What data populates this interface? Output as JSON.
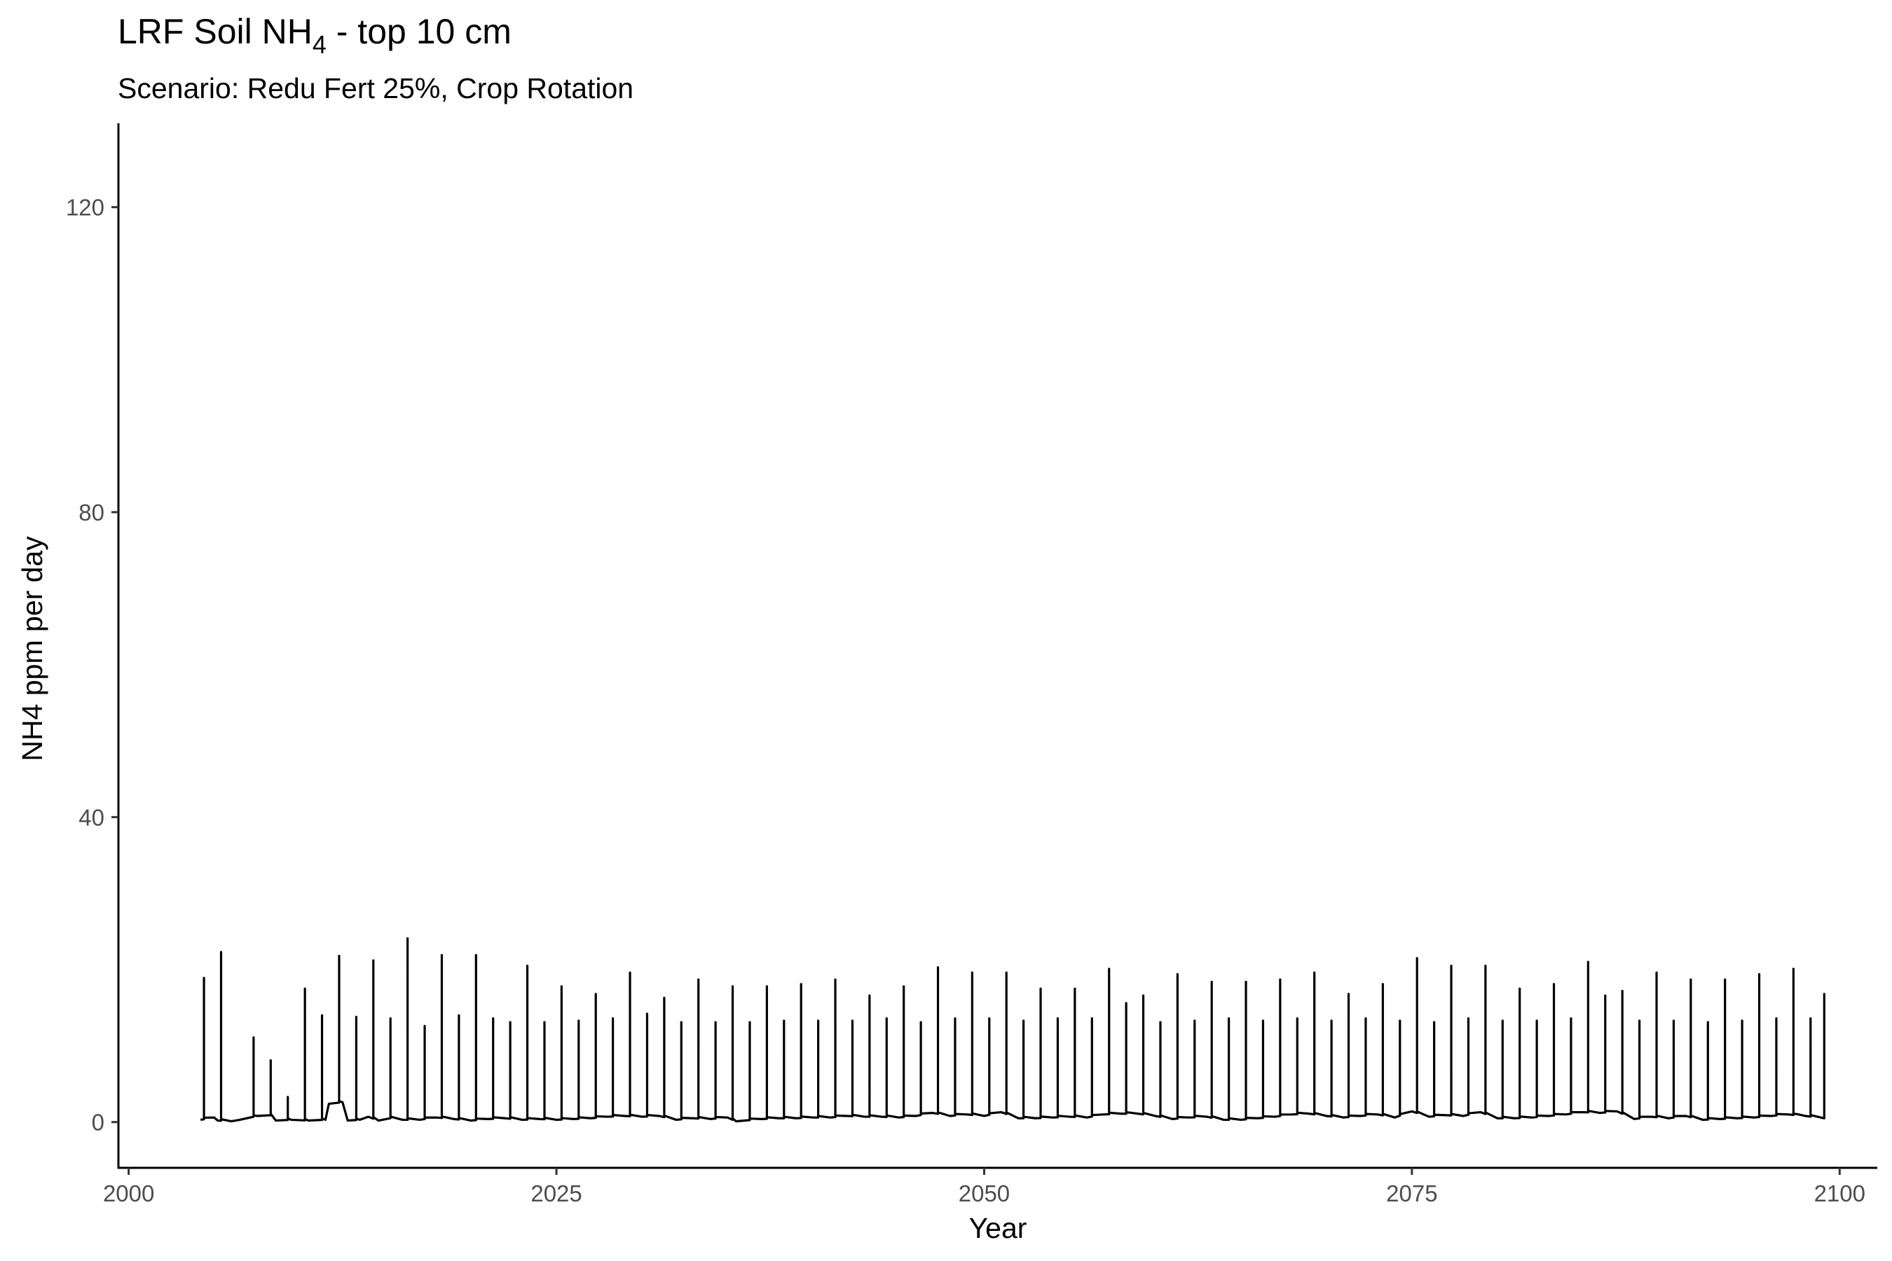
{
  "chart_data": {
    "type": "line",
    "title_main": "LRF Soil NH",
    "title_subscript": "4",
    "title_tail": " - top 10 cm",
    "subtitle": "Scenario: Redu Fert 25%, Crop Rotation",
    "xlabel": "Year",
    "ylabel": "NH4 ppm per day",
    "xlim": [
      1999.4,
      2102.2
    ],
    "ylim": [
      -6.0,
      131.0
    ],
    "x_ticks": [
      2000,
      2025,
      2050,
      2075,
      2100
    ],
    "x_tick_labels": [
      "2000",
      "2025",
      "2050",
      "2075",
      "2100"
    ],
    "y_ticks": [
      0,
      40,
      80,
      120
    ],
    "y_tick_labels": [
      "0",
      "40",
      "80",
      "120"
    ],
    "grid": false,
    "series": [
      {
        "color": "#000000",
        "baseline_start": 2004.2,
        "baseline_end": 2099.1,
        "baseline_points": [
          [
            2004.2,
            0.3
          ],
          [
            2005.0,
            0.6
          ],
          [
            2005.2,
            0.2
          ],
          [
            2006.0,
            0.1
          ],
          [
            2006.5,
            0.3
          ],
          [
            2007.5,
            0.8
          ],
          [
            2008.3,
            0.9
          ],
          [
            2008.6,
            0.2
          ],
          [
            2009.5,
            0.3
          ],
          [
            2010.5,
            0.2
          ],
          [
            2011.5,
            0.3
          ],
          [
            2011.7,
            2.4
          ],
          [
            2012.5,
            2.6
          ],
          [
            2012.8,
            0.2
          ],
          [
            2013.5,
            0.3
          ],
          [
            2014.0,
            0.7
          ],
          [
            2014.6,
            0.2
          ],
          [
            2015.5,
            0.6
          ],
          [
            2016.0,
            0.3
          ],
          [
            2017.0,
            0.3
          ],
          [
            2018.0,
            0.6
          ],
          [
            2019.0,
            0.4
          ],
          [
            2020.0,
            0.2
          ],
          [
            2021.0,
            0.4
          ],
          [
            2022.0,
            0.5
          ],
          [
            2023.0,
            0.3
          ],
          [
            2024.0,
            0.4
          ],
          [
            2025.0,
            0.3
          ],
          [
            2026.0,
            0.4
          ],
          [
            2027.0,
            0.5
          ],
          [
            2028.0,
            0.7
          ],
          [
            2029.0,
            0.8
          ],
          [
            2030.0,
            0.7
          ],
          [
            2031.0,
            0.8
          ],
          [
            2032.0,
            0.3
          ],
          [
            2033.0,
            0.5
          ],
          [
            2034.0,
            0.4
          ],
          [
            2035.0,
            0.6
          ],
          [
            2035.5,
            0.1
          ],
          [
            2036.0,
            0.2
          ],
          [
            2037.0,
            0.4
          ],
          [
            2038.0,
            0.5
          ],
          [
            2039.0,
            0.5
          ],
          [
            2040.0,
            0.6
          ],
          [
            2041.0,
            0.6
          ],
          [
            2042.0,
            0.8
          ],
          [
            2043.0,
            0.7
          ],
          [
            2044.0,
            0.7
          ],
          [
            2045.0,
            0.6
          ],
          [
            2046.0,
            0.8
          ],
          [
            2047.0,
            1.2
          ],
          [
            2048.0,
            0.8
          ],
          [
            2049.0,
            1.0
          ],
          [
            2050.0,
            0.8
          ],
          [
            2051.0,
            1.3
          ],
          [
            2052.0,
            0.5
          ],
          [
            2053.0,
            0.5
          ],
          [
            2054.0,
            0.6
          ],
          [
            2055.0,
            0.7
          ],
          [
            2056.0,
            0.6
          ],
          [
            2057.0,
            1.0
          ],
          [
            2058.0,
            1.1
          ],
          [
            2059.0,
            1.1
          ],
          [
            2060.0,
            0.8
          ],
          [
            2061.0,
            0.4
          ],
          [
            2062.0,
            0.6
          ],
          [
            2063.0,
            0.7
          ],
          [
            2064.0,
            0.3
          ],
          [
            2065.0,
            0.3
          ],
          [
            2066.0,
            0.5
          ],
          [
            2067.0,
            0.7
          ],
          [
            2068.0,
            1.0
          ],
          [
            2069.0,
            1.1
          ],
          [
            2070.0,
            0.8
          ],
          [
            2071.0,
            0.6
          ],
          [
            2072.0,
            0.8
          ],
          [
            2073.0,
            1.0
          ],
          [
            2074.0,
            0.6
          ],
          [
            2075.0,
            1.4
          ],
          [
            2076.0,
            0.7
          ],
          [
            2077.0,
            0.9
          ],
          [
            2078.0,
            0.8
          ],
          [
            2079.0,
            1.3
          ],
          [
            2080.0,
            0.5
          ],
          [
            2081.0,
            0.5
          ],
          [
            2082.0,
            0.6
          ],
          [
            2083.0,
            0.8
          ],
          [
            2084.0,
            1.0
          ],
          [
            2085.0,
            1.3
          ],
          [
            2086.0,
            1.2
          ],
          [
            2087.0,
            1.4
          ],
          [
            2088.0,
            0.4
          ],
          [
            2089.0,
            0.7
          ],
          [
            2090.0,
            0.5
          ],
          [
            2091.0,
            0.8
          ],
          [
            2092.0,
            0.3
          ],
          [
            2093.0,
            0.4
          ],
          [
            2094.0,
            0.5
          ],
          [
            2095.0,
            0.6
          ],
          [
            2096.0,
            0.8
          ],
          [
            2097.0,
            1.0
          ],
          [
            2098.0,
            0.8
          ],
          [
            2099.1,
            0.5
          ]
        ],
        "spikes": [
          [
            2004.4,
            18.9
          ],
          [
            2005.4,
            22.3
          ],
          [
            2007.3,
            11.1
          ],
          [
            2008.3,
            8.1
          ],
          [
            2009.3,
            3.3
          ],
          [
            2010.3,
            17.5
          ],
          [
            2011.3,
            14.0
          ],
          [
            2012.3,
            21.8
          ],
          [
            2013.3,
            13.8
          ],
          [
            2014.3,
            21.2
          ],
          [
            2015.3,
            13.6
          ],
          [
            2016.3,
            24.1
          ],
          [
            2017.3,
            12.6
          ],
          [
            2018.3,
            21.9
          ],
          [
            2019.3,
            14.0
          ],
          [
            2020.3,
            21.9
          ],
          [
            2021.3,
            13.6
          ],
          [
            2022.3,
            13.1
          ],
          [
            2023.3,
            20.5
          ],
          [
            2024.3,
            13.1
          ],
          [
            2025.3,
            17.8
          ],
          [
            2026.3,
            13.3
          ],
          [
            2027.3,
            16.8
          ],
          [
            2028.3,
            13.6
          ],
          [
            2029.3,
            19.6
          ],
          [
            2030.3,
            14.2
          ],
          [
            2031.3,
            16.3
          ],
          [
            2032.3,
            13.1
          ],
          [
            2033.3,
            18.7
          ],
          [
            2034.3,
            13.1
          ],
          [
            2035.3,
            17.8
          ],
          [
            2036.3,
            13.1
          ],
          [
            2037.3,
            17.8
          ],
          [
            2038.3,
            13.3
          ],
          [
            2039.3,
            18.1
          ],
          [
            2040.3,
            13.3
          ],
          [
            2041.3,
            18.7
          ],
          [
            2042.3,
            13.3
          ],
          [
            2043.3,
            16.6
          ],
          [
            2044.3,
            13.6
          ],
          [
            2045.3,
            17.8
          ],
          [
            2046.3,
            13.1
          ],
          [
            2047.3,
            20.3
          ],
          [
            2048.3,
            13.6
          ],
          [
            2049.3,
            19.6
          ],
          [
            2050.3,
            13.6
          ],
          [
            2051.3,
            19.6
          ],
          [
            2052.3,
            13.3
          ],
          [
            2053.3,
            17.5
          ],
          [
            2054.3,
            13.6
          ],
          [
            2055.3,
            17.5
          ],
          [
            2056.3,
            13.6
          ],
          [
            2057.3,
            20.1
          ],
          [
            2058.3,
            15.6
          ],
          [
            2059.3,
            16.6
          ],
          [
            2060.3,
            13.1
          ],
          [
            2061.3,
            19.4
          ],
          [
            2062.3,
            13.3
          ],
          [
            2063.3,
            18.4
          ],
          [
            2064.3,
            13.6
          ],
          [
            2065.3,
            18.4
          ],
          [
            2066.3,
            13.3
          ],
          [
            2067.3,
            18.7
          ],
          [
            2068.3,
            13.6
          ],
          [
            2069.3,
            19.6
          ],
          [
            2070.3,
            13.3
          ],
          [
            2071.3,
            16.8
          ],
          [
            2072.3,
            13.6
          ],
          [
            2073.3,
            18.1
          ],
          [
            2074.3,
            13.3
          ],
          [
            2075.3,
            21.5
          ],
          [
            2076.3,
            13.1
          ],
          [
            2077.3,
            20.5
          ],
          [
            2078.3,
            13.6
          ],
          [
            2079.3,
            20.5
          ],
          [
            2080.3,
            13.3
          ],
          [
            2081.3,
            17.5
          ],
          [
            2082.3,
            13.3
          ],
          [
            2083.3,
            18.1
          ],
          [
            2084.3,
            13.6
          ],
          [
            2085.3,
            21.0
          ],
          [
            2086.3,
            16.6
          ],
          [
            2087.3,
            17.2
          ],
          [
            2088.3,
            13.3
          ],
          [
            2089.3,
            19.6
          ],
          [
            2090.3,
            13.3
          ],
          [
            2091.3,
            18.7
          ],
          [
            2092.3,
            13.1
          ],
          [
            2093.3,
            18.7
          ],
          [
            2094.3,
            13.3
          ],
          [
            2095.3,
            19.4
          ],
          [
            2096.3,
            13.6
          ],
          [
            2097.3,
            20.1
          ],
          [
            2098.3,
            13.6
          ],
          [
            2099.1,
            16.8
          ]
        ]
      }
    ]
  }
}
